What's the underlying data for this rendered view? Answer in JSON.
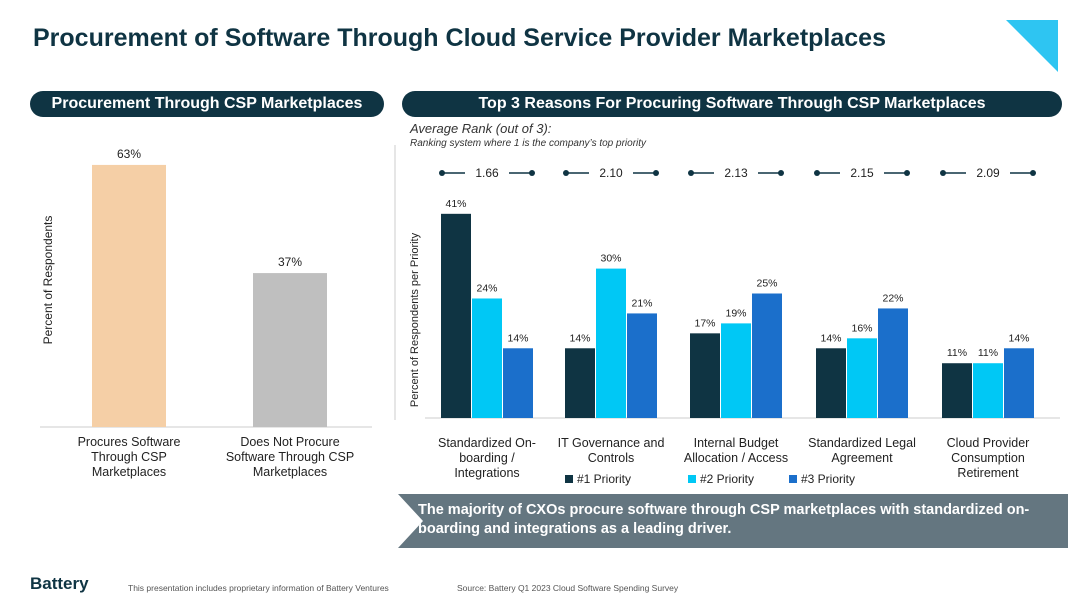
{
  "title": "Procurement of Software Through Cloud Service Provider Marketplaces",
  "left_panel_title": "Procurement Through CSP Marketplaces",
  "right_panel_title": "Top 3 Reasons For Procuring Software Through CSP Marketplaces",
  "avg_rank_title": "Average Rank (out of 3):",
  "avg_rank_sub": "Ranking system where 1 is the company’s top priority",
  "callout": "The majority of CXOs procure software through CSP marketplaces with standardized on-boarding and integrations as a leading driver.",
  "footer": {
    "brand": "Battery",
    "note": "This presentation includes proprietary information of Battery Ventures",
    "source": "Source: Battery Q1 2023 Cloud Software Spending Survey"
  },
  "colors": {
    "navy": "#0f3443",
    "cyan": "#00c8f5",
    "blue": "#1b6fcb",
    "peach": "#f5cfa6",
    "gray": "#bfbfbf"
  },
  "chart_data": [
    {
      "type": "bar",
      "ylabel": "Percent of Respondents",
      "categories": [
        "Procures Software Through CSP Marketplaces",
        "Does Not Procure Software Through CSP Marketplaces"
      ],
      "values": [
        63,
        37
      ],
      "labels": [
        "63%",
        "37%"
      ],
      "ylim": [
        0,
        70
      ]
    },
    {
      "type": "bar",
      "ylabel": "Percent of Respondents per Priority",
      "categories": [
        "Standardized On-boarding / Integrations",
        "IT Governance and Controls",
        "Internal Budget Allocation / Access",
        "Standardized Legal Agreement",
        "Cloud Provider Consumption Retirement"
      ],
      "avg_rank": [
        "1.66",
        "2.10",
        "2.13",
        "2.15",
        "2.09"
      ],
      "series": [
        {
          "name": "#1 Priority",
          "values": [
            41,
            14,
            17,
            14,
            11
          ]
        },
        {
          "name": "#2 Priority",
          "values": [
            24,
            30,
            19,
            16,
            11
          ]
        },
        {
          "name": "#3 Priority",
          "values": [
            14,
            21,
            25,
            22,
            14
          ]
        }
      ],
      "legend": "bottom",
      "ylim": [
        0,
        45
      ]
    }
  ]
}
